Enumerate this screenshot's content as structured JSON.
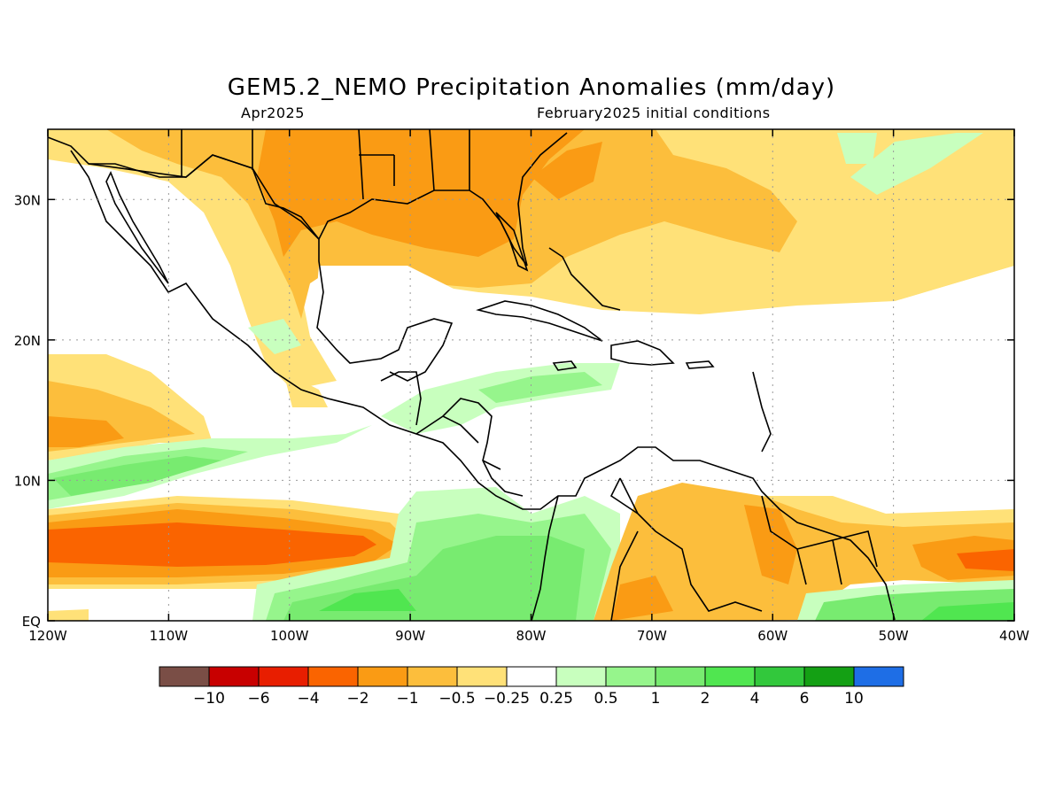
{
  "title": "GEM5.2_NEMO Precipitation Anomalies (mm/day)",
  "subtitle_left": "Apr2025",
  "subtitle_right": "February2025 initial conditions",
  "map": {
    "lon_range": [
      -120,
      -40
    ],
    "lat_range": [
      0,
      35
    ],
    "lon_ticks": [
      {
        "value": -120,
        "label": "120W"
      },
      {
        "value": -110,
        "label": "110W"
      },
      {
        "value": -100,
        "label": "100W"
      },
      {
        "value": -90,
        "label": "90W"
      },
      {
        "value": -80,
        "label": "80W"
      },
      {
        "value": -70,
        "label": "70W"
      },
      {
        "value": -60,
        "label": "60W"
      },
      {
        "value": -50,
        "label": "50W"
      },
      {
        "value": -40,
        "label": "40W"
      }
    ],
    "lat_ticks": [
      {
        "value": 0,
        "label": "EQ"
      },
      {
        "value": 10,
        "label": "10N"
      },
      {
        "value": 20,
        "label": "20N"
      },
      {
        "value": 30,
        "label": "30N"
      }
    ],
    "grid": true
  },
  "colorbar": {
    "colors": [
      "#7a4e46",
      "#c80000",
      "#e81e00",
      "#fa6400",
      "#fa9b14",
      "#fcbe3c",
      "#ffe178",
      "#ffffff",
      "#c8ffbe",
      "#96f58c",
      "#78eb70",
      "#50e650",
      "#32c83c",
      "#14a014",
      "#1e6ee6"
    ],
    "labels": [
      "−10",
      "−6",
      "−4",
      "−2",
      "−1",
      "−0.5",
      "−0.25",
      "0.25",
      "0.5",
      "1",
      "2",
      "4",
      "6",
      "10"
    ]
  }
}
